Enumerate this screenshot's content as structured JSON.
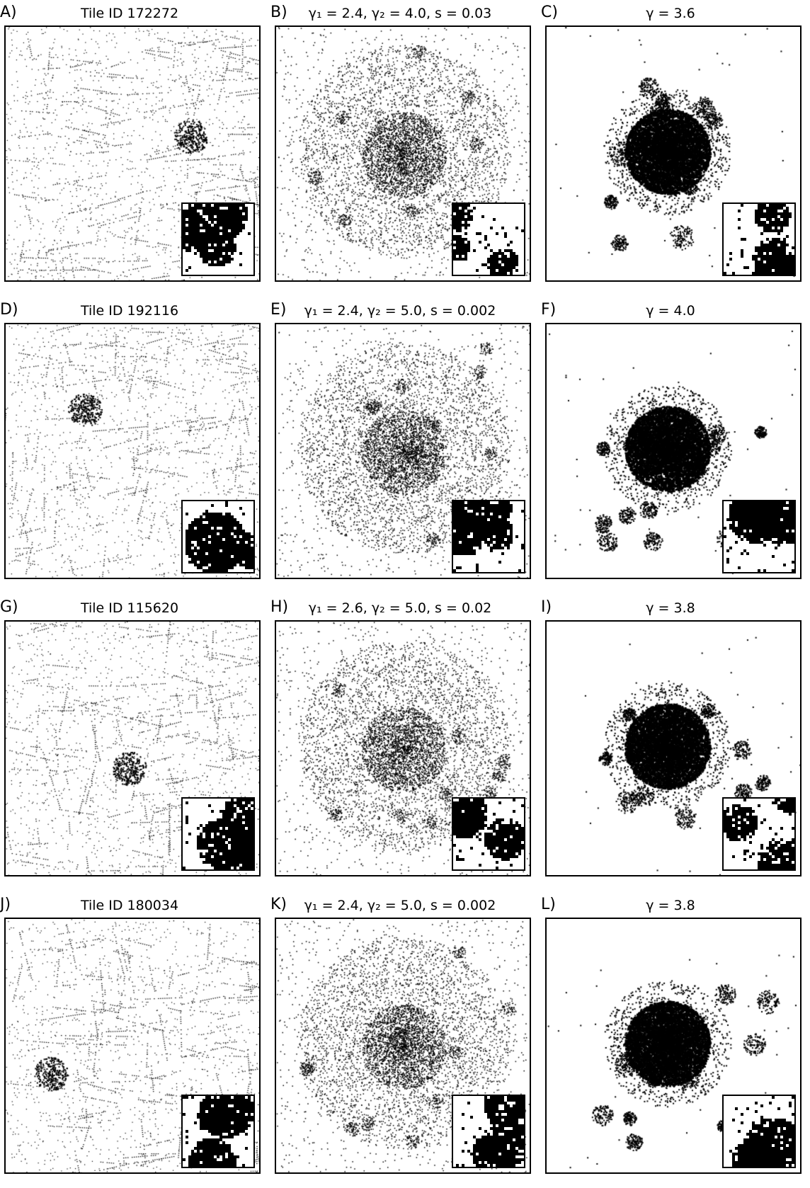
{
  "panels": [
    {
      "letter": "A)",
      "title": "Tile ID 172272",
      "kind": "tile",
      "seed": 11
    },
    {
      "letter": "B)",
      "title": "γ₁ = 2.4, γ₂ = 4.0, s = 0.03",
      "kind": "double",
      "seed": 12
    },
    {
      "letter": "C)",
      "title": "γ = 3.6",
      "kind": "single",
      "seed": 13
    },
    {
      "letter": "D)",
      "title": "Tile ID 192116",
      "kind": "tile",
      "seed": 21
    },
    {
      "letter": "E)",
      "title": "γ₁ = 2.4, γ₂ = 5.0, s = 0.002",
      "kind": "double",
      "seed": 22
    },
    {
      "letter": "F)",
      "title": "γ = 4.0",
      "kind": "single",
      "seed": 23
    },
    {
      "letter": "G)",
      "title": "Tile ID 115620",
      "kind": "tile",
      "seed": 31
    },
    {
      "letter": "H)",
      "title": "γ₁ = 2.6, γ₂ = 5.0, s = 0.02",
      "kind": "double",
      "seed": 32
    },
    {
      "letter": "I)",
      "title": "γ = 3.8",
      "kind": "single",
      "seed": 33
    },
    {
      "letter": "J)",
      "title": "Tile ID 180034",
      "kind": "tile",
      "seed": 41
    },
    {
      "letter": "K)",
      "title": "γ₁ = 2.4, γ₂ = 5.0, s = 0.002",
      "kind": "double",
      "seed": 42
    },
    {
      "letter": "L)",
      "title": "γ = 3.8",
      "kind": "single",
      "seed": 43
    }
  ],
  "colors": {
    "foreground": "#000000",
    "background": "#ffffff"
  }
}
